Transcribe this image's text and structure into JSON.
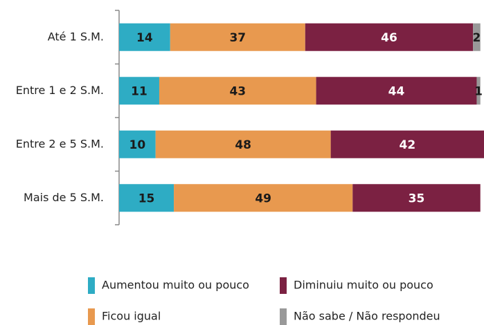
{
  "chart_data": {
    "type": "stacked_bar_horizontal",
    "categories": [
      "Até 1 S.M.",
      "Entre 1 e 2 S.M.",
      "Entre 2 e 5 S.M.",
      "Mais de 5 S.M."
    ],
    "series": [
      {
        "name": "Aumentou muito ou pouco",
        "color": "#2eacc4",
        "values": [
          14,
          11,
          10,
          15
        ]
      },
      {
        "name": "Ficou igual",
        "color": "#e8994f",
        "values": [
          37,
          43,
          48,
          49
        ]
      },
      {
        "name": "Diminuiu muito ou pouco",
        "color": "#7b2142",
        "values": [
          46,
          44,
          42,
          35
        ]
      },
      {
        "name": "Não sabe / Não respondeu",
        "color": "#999999",
        "values": [
          2,
          1,
          null,
          null
        ]
      }
    ],
    "xlim": [
      0,
      100
    ],
    "legend": "bottom"
  }
}
